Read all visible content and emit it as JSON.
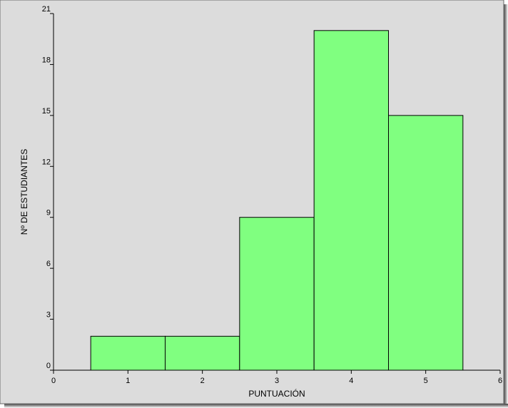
{
  "chart_data": {
    "type": "bar",
    "title": "",
    "xlabel": "PUNTUACIÓN",
    "ylabel": "Nº DE ESTUDIANTES",
    "xlim": [
      0,
      6
    ],
    "ylim": [
      0,
      21
    ],
    "x_ticks": [
      0,
      1,
      2,
      3,
      4,
      5,
      6
    ],
    "y_ticks": [
      0,
      3,
      6,
      9,
      12,
      15,
      18,
      21
    ],
    "categories": [
      "1",
      "2",
      "3",
      "4",
      "5"
    ],
    "bins": [
      {
        "x": 1,
        "from": 0.5,
        "to": 1.5,
        "value": 2
      },
      {
        "x": 2,
        "from": 1.5,
        "to": 2.5,
        "value": 2
      },
      {
        "x": 3,
        "from": 2.5,
        "to": 3.5,
        "value": 9
      },
      {
        "x": 4,
        "from": 3.5,
        "to": 4.5,
        "value": 20
      },
      {
        "x": 5,
        "from": 4.5,
        "to": 5.5,
        "value": 15
      }
    ],
    "values": [
      2,
      2,
      9,
      20,
      15
    ],
    "grid": false,
    "legend": "none"
  },
  "colors": {
    "bar_fill": "#80ff80",
    "plot_background": "#dcdcdc",
    "frame_shadow": "#555555",
    "axis": "#000000"
  }
}
